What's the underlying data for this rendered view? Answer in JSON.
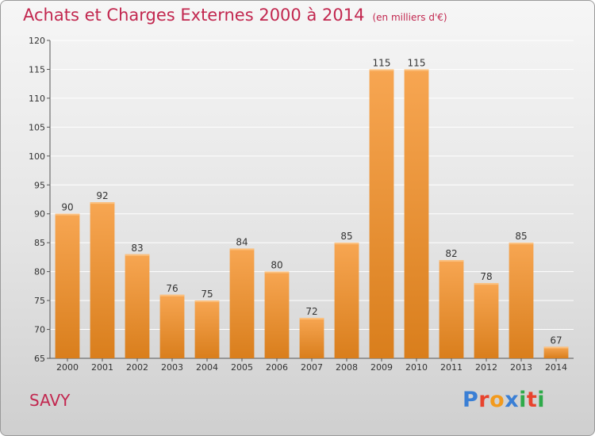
{
  "title": "Achats et Charges Externes 2000 à 2014",
  "subtitle": "(en milliers d'€)",
  "location": "SAVY",
  "logo": {
    "text": "Proxiti",
    "colors": [
      "#3a7fd5",
      "#e8432d",
      "#f29a1d",
      "#3a7fd5",
      "#2faa4a",
      "#e8432d",
      "#2faa4a"
    ]
  },
  "colors": {
    "bar_top": "#f7a652",
    "bar_bottom": "#d97e1c",
    "title": "#c2274f"
  },
  "chart_data": {
    "type": "bar",
    "categories": [
      "2000",
      "2001",
      "2002",
      "2003",
      "2004",
      "2005",
      "2006",
      "2007",
      "2008",
      "2009",
      "2010",
      "2011",
      "2012",
      "2013",
      "2014"
    ],
    "values": [
      90,
      92,
      83,
      76,
      75,
      84,
      80,
      72,
      85,
      115,
      115,
      82,
      78,
      85,
      67
    ],
    "ylim": [
      65,
      120
    ],
    "yticks": [
      65,
      70,
      75,
      80,
      85,
      90,
      95,
      100,
      105,
      110,
      115,
      120
    ],
    "grid": true,
    "legend": "none"
  }
}
